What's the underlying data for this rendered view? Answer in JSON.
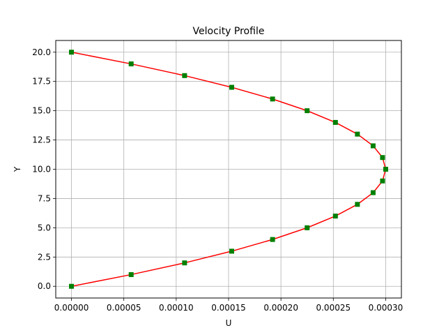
{
  "chart_data": {
    "type": "line",
    "title": "Velocity Profile",
    "xlabel": "U",
    "ylabel": "Y",
    "xlim": [
      -1.5e-05,
      0.000315
    ],
    "ylim": [
      -1.0,
      21.0
    ],
    "xticks": [
      0,
      5e-05,
      0.0001,
      0.00015,
      0.0002,
      0.00025,
      0.0003
    ],
    "xtick_labels": [
      "0.00000",
      "0.00005",
      "0.00010",
      "0.00015",
      "0.00020",
      "0.00025",
      "0.00030"
    ],
    "yticks": [
      0,
      2.5,
      5,
      7.5,
      10,
      12.5,
      15,
      17.5,
      20
    ],
    "ytick_labels": [
      "0.0",
      "2.5",
      "5.0",
      "7.5",
      "10.0",
      "12.5",
      "15.0",
      "17.5",
      "20.0"
    ],
    "grid": true,
    "line_color": "#ff0000",
    "marker_color": "#008000",
    "marker": "square",
    "series": [
      {
        "x": [
          0,
          5.7e-05,
          0.000108,
          0.000153,
          0.000192,
          0.000225,
          0.000252,
          0.000273,
          0.000288,
          0.000297,
          0.0003,
          0.000297,
          0.000288,
          0.000273,
          0.000252,
          0.000225,
          0.000192,
          0.000153,
          0.000108,
          5.7e-05,
          0
        ],
        "y": [
          0,
          1,
          2,
          3,
          4,
          5,
          6,
          7,
          8,
          9,
          10,
          11,
          12,
          13,
          14,
          15,
          16,
          17,
          18,
          19,
          20
        ]
      }
    ]
  }
}
